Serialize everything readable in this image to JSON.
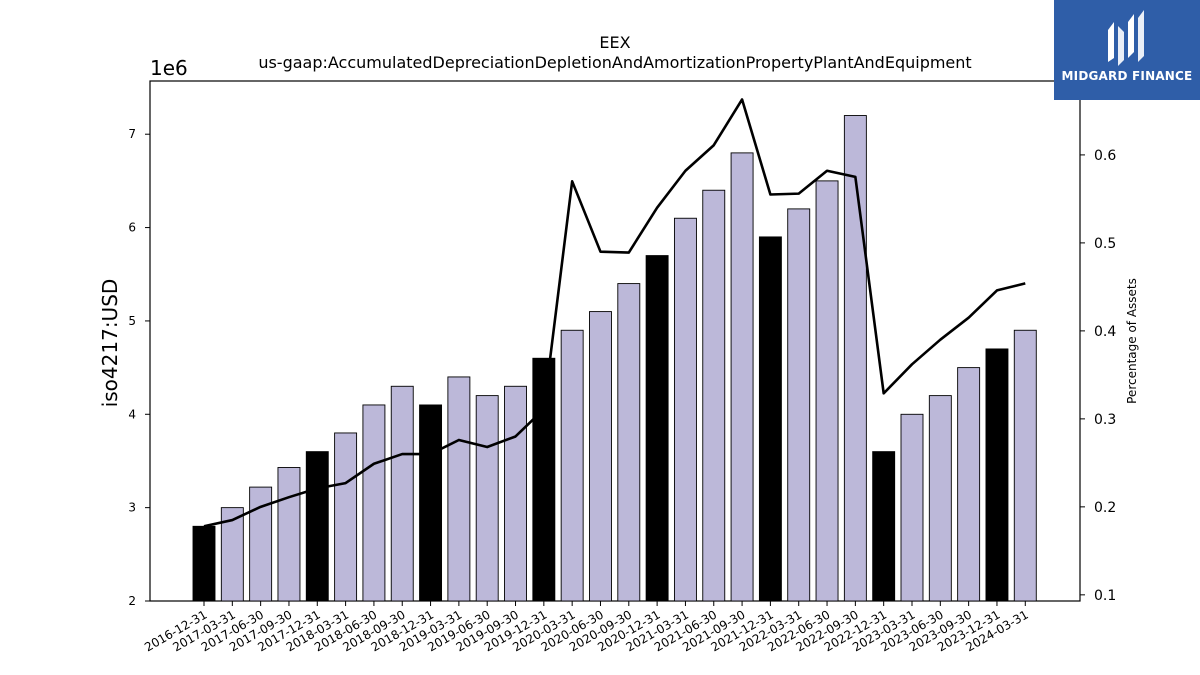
{
  "chart_data": {
    "type": "bar",
    "title": "EEX",
    "subtitle": "us-gaap:AccumulatedDepreciationDepletionAndAmortizationPropertyPlantAndEquipment",
    "ylabel": "iso4217:USD",
    "y2label": "Percentage of Assets",
    "y_scale_label": "1e6",
    "ylim": [
      2,
      7.57
    ],
    "y2lim": [
      0.093,
      0.684
    ],
    "yticks": [
      2,
      3,
      4,
      5,
      6,
      7
    ],
    "y2ticks": [
      0.1,
      0.2,
      0.3,
      0.4,
      0.5,
      0.6
    ],
    "categories": [
      "2016-12-31",
      "2017-03-31",
      "2017-06-30",
      "2017-09-30",
      "2017-12-31",
      "2018-03-31",
      "2018-06-30",
      "2018-09-30",
      "2018-12-31",
      "2019-03-31",
      "2019-06-30",
      "2019-09-30",
      "2019-12-31",
      "2020-03-31",
      "2020-06-30",
      "2020-09-30",
      "2020-12-31",
      "2021-03-31",
      "2021-06-30",
      "2021-09-30",
      "2021-12-31",
      "2022-03-31",
      "2022-06-30",
      "2022-09-30",
      "2022-12-31",
      "2023-03-31",
      "2023-06-30",
      "2023-09-30",
      "2023-12-31",
      "2024-03-31"
    ],
    "series": [
      {
        "kind": "bar",
        "values": [
          2.8,
          3.0,
          3.22,
          3.43,
          3.6,
          3.8,
          4.1,
          4.3,
          4.1,
          4.4,
          4.2,
          4.3,
          4.6,
          4.9,
          5.1,
          5.4,
          5.7,
          6.1,
          6.4,
          6.8,
          5.9,
          6.2,
          6.5,
          7.2,
          3.6,
          4.0,
          4.2,
          4.5,
          4.7,
          4.9
        ],
        "colors": [
          "#000000",
          "#bcb8d9",
          "#bcb8d9",
          "#bcb8d9",
          "#000000",
          "#bcb8d9",
          "#bcb8d9",
          "#bcb8d9",
          "#000000",
          "#bcb8d9",
          "#bcb8d9",
          "#bcb8d9",
          "#000000",
          "#bcb8d9",
          "#bcb8d9",
          "#bcb8d9",
          "#000000",
          "#bcb8d9",
          "#bcb8d9",
          "#bcb8d9",
          "#000000",
          "#bcb8d9",
          "#bcb8d9",
          "#bcb8d9",
          "#000000",
          "#bcb8d9",
          "#bcb8d9",
          "#bcb8d9",
          "#000000",
          "#bcb8d9"
        ]
      },
      {
        "kind": "line",
        "axis": "right",
        "color": "#000000",
        "values": [
          0.178,
          0.185,
          0.2,
          0.211,
          0.221,
          0.227,
          0.249,
          0.26,
          0.26,
          0.276,
          0.268,
          0.28,
          0.311,
          0.57,
          0.49,
          0.489,
          0.54,
          0.582,
          0.611,
          0.663,
          0.555,
          0.556,
          0.582,
          0.575,
          0.329,
          0.362,
          0.39,
          0.415,
          0.446,
          0.454
        ]
      }
    ],
    "grid": false,
    "legend": "none"
  },
  "logo": {
    "text": "MIDGARD FINANCE",
    "color": "#2f5ea8"
  }
}
